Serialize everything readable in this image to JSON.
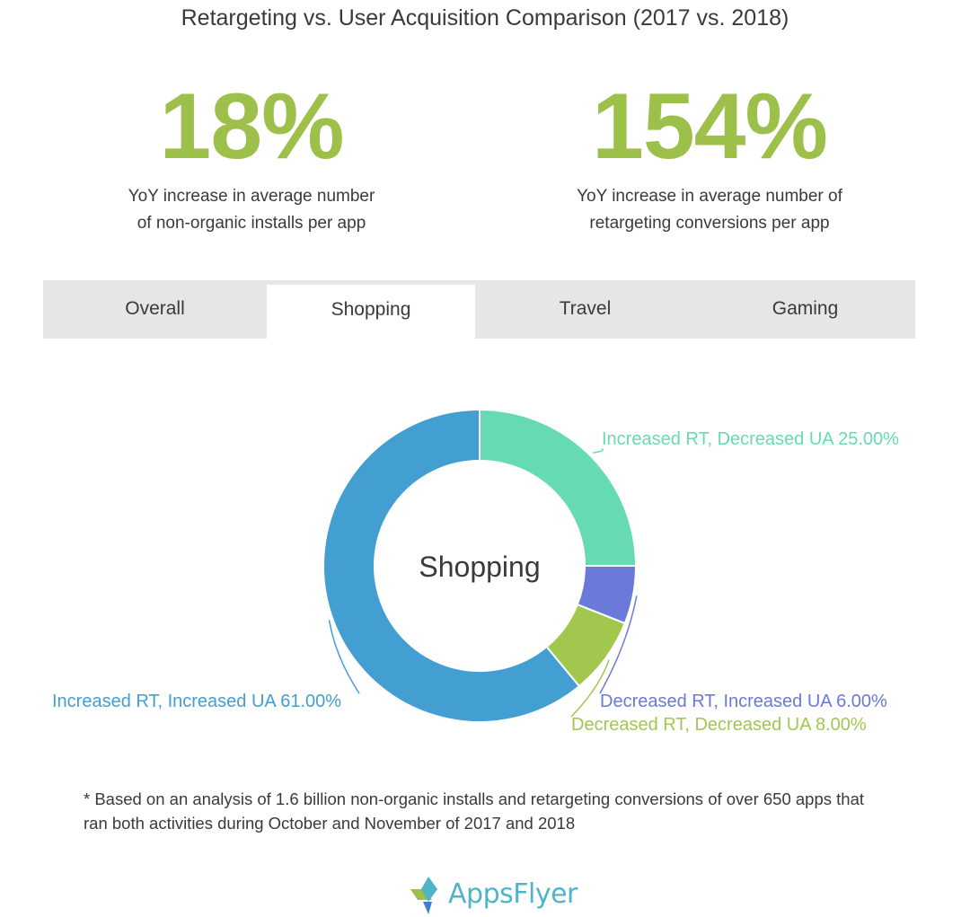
{
  "title": "Retargeting vs. User Acquisition Comparison (2017 vs. 2018)",
  "stats": [
    {
      "value": "18%",
      "caption": "YoY increase in average number\nof  non-organic installs per app"
    },
    {
      "value": "154%",
      "caption": "YoY increase in average number of\nretargeting conversions per app"
    }
  ],
  "tabs": [
    {
      "label": "Overall",
      "active": false
    },
    {
      "label": "Shopping",
      "active": true
    },
    {
      "label": "Travel",
      "active": false
    },
    {
      "label": "Gaming",
      "active": false
    }
  ],
  "chart_data": {
    "type": "pie",
    "center_label": "Shopping",
    "slices": [
      {
        "name": "Increased RT, Decreased UA",
        "value": 25.0,
        "label": "Increased RT, Decreased UA 25.00%",
        "color": "#66dbb3"
      },
      {
        "name": "Decreased RT, Increased UA",
        "value": 6.0,
        "label": "Decreased RT, Increased UA 6.00%",
        "color": "#6b79d9"
      },
      {
        "name": "Decreased RT, Decreased UA",
        "value": 8.0,
        "label": "Decreased RT, Decreased UA 8.00%",
        "color": "#a2c74e"
      },
      {
        "name": "Increased RT, Increased UA",
        "value": 61.0,
        "label": "Increased RT, Increased UA 61.00%",
        "color": "#439ed2"
      }
    ]
  },
  "footnote": "* Based on an analysis of 1.6 billion non-organic installs and retargeting conversions of over 650 apps that ran both activities during October and November of 2017 and 2018",
  "logo": {
    "text": "AppsFlyer",
    "icon": "appsflyer-logo-icon",
    "colors": [
      "#9dc04b",
      "#4fb4c9",
      "#3b7fd1"
    ]
  }
}
